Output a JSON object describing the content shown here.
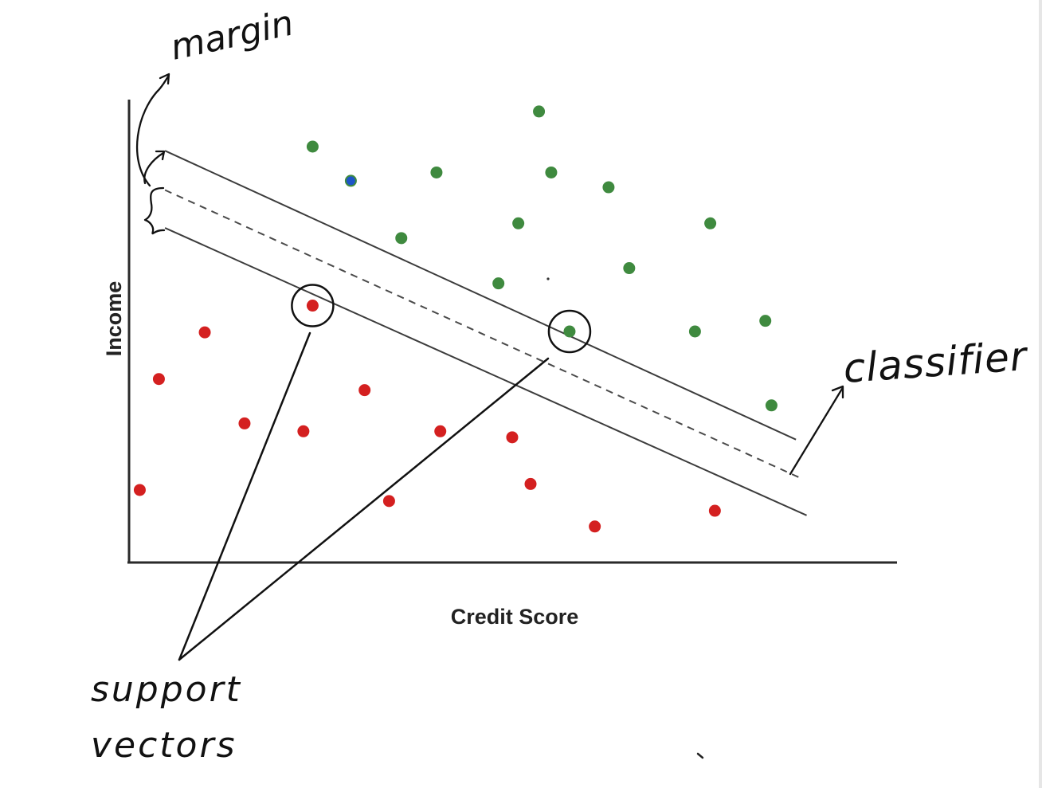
{
  "chart_data": {
    "type": "scatter",
    "xlabel": "Credit Score",
    "ylabel": "Income",
    "xlim": [
      0,
      100
    ],
    "ylim": [
      0,
      100
    ],
    "grid": false,
    "series": [
      {
        "color": "#3f8a3f",
        "points": [
          [
            24.0,
            90.0
          ],
          [
            29.0,
            82.6
          ],
          [
            40.2,
            84.4
          ],
          [
            53.6,
            97.6
          ],
          [
            55.2,
            84.4
          ],
          [
            62.7,
            81.2
          ],
          [
            35.6,
            70.2
          ],
          [
            50.9,
            73.4
          ],
          [
            48.3,
            60.4
          ],
          [
            65.4,
            63.7
          ],
          [
            76.0,
            73.4
          ],
          [
            57.6,
            50.0
          ],
          [
            74.0,
            50.0
          ],
          [
            83.2,
            52.3
          ],
          [
            84.0,
            34.0
          ]
        ]
      },
      {
        "color": "#d42020",
        "points": [
          [
            24.0,
            55.6
          ],
          [
            9.9,
            49.8
          ],
          [
            3.9,
            39.7
          ],
          [
            30.8,
            37.3
          ],
          [
            15.1,
            30.1
          ],
          [
            22.8,
            28.4
          ],
          [
            40.7,
            28.4
          ],
          [
            50.1,
            27.1
          ],
          [
            1.4,
            15.7
          ],
          [
            34.0,
            13.3
          ],
          [
            52.5,
            17.0
          ],
          [
            60.9,
            7.8
          ],
          [
            76.6,
            11.2
          ]
        ]
      },
      {
        "color": "#1d55c8",
        "points": [
          [
            29.0,
            82.6
          ]
        ]
      }
    ],
    "boundary_lines": {
      "upper_margin": [
        [
          4.7,
          89.1
        ],
        [
          87.2,
          26.6
        ]
      ],
      "classifier": [
        [
          4.7,
          80.6
        ],
        [
          87.9,
          18.2
        ]
      ],
      "lower_margin": [
        [
          4.7,
          72.4
        ],
        [
          88.6,
          10.2
        ]
      ]
    },
    "support_vectors": [
      [
        24.0,
        55.6
      ],
      [
        57.6,
        50.0
      ]
    ]
  },
  "annotations": {
    "margin": "margin",
    "classifier": "classifier",
    "support_line1": "support",
    "support_line2": "vectors"
  },
  "colors": {
    "axis": "#2a2a2a",
    "boundary": "#3c3c3c",
    "ink": "#111111"
  }
}
